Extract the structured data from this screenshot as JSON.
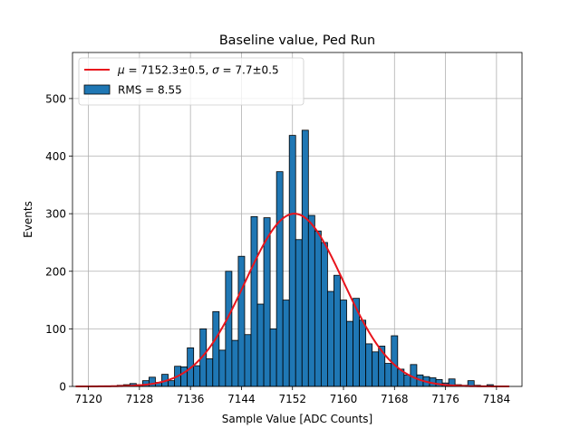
{
  "chart_data": {
    "type": "bar",
    "title": "Baseline value, Ped Run",
    "xlabel": "Sample Value [ADC Counts]",
    "ylabel": "Events",
    "xlim": [
      7117.5,
      7188
    ],
    "ylim": [
      0,
      580
    ],
    "xticks": [
      7120,
      7128,
      7136,
      7144,
      7152,
      7160,
      7168,
      7176,
      7184
    ],
    "yticks": [
      0,
      100,
      200,
      300,
      400,
      500
    ],
    "grid": true,
    "legend_position": "top-left",
    "bin_width": 1,
    "bins": {
      "x": [
        7121,
        7122,
        7123,
        7124,
        7125,
        7126,
        7127,
        7128,
        7129,
        7130,
        7131,
        7132,
        7133,
        7134,
        7135,
        7136,
        7137,
        7138,
        7139,
        7140,
        7141,
        7142,
        7143,
        7144,
        7145,
        7146,
        7147,
        7148,
        7149,
        7150,
        7151,
        7152,
        7153,
        7154,
        7155,
        7156,
        7157,
        7158,
        7159,
        7160,
        7161,
        7162,
        7163,
        7164,
        7165,
        7166,
        7167,
        7168,
        7169,
        7170,
        7171,
        7172,
        7173,
        7174,
        7175,
        7176,
        7177,
        7178,
        7179,
        7180,
        7181,
        7182,
        7183
      ],
      "values": [
        1,
        0,
        1,
        1,
        2,
        3,
        5,
        3,
        10,
        16,
        7,
        21,
        10,
        35,
        34,
        67,
        36,
        100,
        48,
        130,
        63,
        200,
        80,
        226,
        90,
        295,
        143,
        293,
        100,
        373,
        150,
        436,
        255,
        445,
        297,
        270,
        250,
        165,
        193,
        150,
        113,
        153,
        115,
        74,
        60,
        70,
        40,
        88,
        30,
        20,
        38,
        20,
        17,
        15,
        12,
        6,
        13,
        3,
        2,
        10,
        2,
        1,
        3
      ]
    },
    "fit": {
      "type": "gaussian",
      "mu": 7152.3,
      "sigma": 7.7,
      "amplitude": 300,
      "x_range": [
        7118,
        7186
      ]
    },
    "legend": [
      {
        "name": "$\\mu = 7152.3\\pm0.5$, $\\sigma = 7.7\\pm0.5$",
        "display_parts": [
          "μ",
          " = 7152.3±0.5, ",
          "σ",
          " = 7.7±0.5"
        ],
        "color": "#e8141c",
        "kind": "line"
      },
      {
        "name": "RMS = 8.55",
        "color": "#1f77b4",
        "kind": "patch"
      }
    ]
  }
}
